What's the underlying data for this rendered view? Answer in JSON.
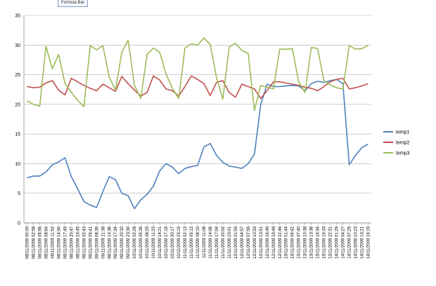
{
  "tooltip": {
    "label": "Formula Bar"
  },
  "chart_data": {
    "type": "line",
    "title": "",
    "xlabel": "",
    "ylabel": "",
    "ylim": [
      0,
      35
    ],
    "yticks": [
      0,
      5,
      10,
      15,
      20,
      25,
      30,
      35
    ],
    "grid": true,
    "legend": "right",
    "categories": [
      "08/11/2009 00:00",
      "08/11/2009 02:58",
      "08/11/2009 05:56",
      "08/11/2009 08:54",
      "08/11/2009 11:52",
      "08/11/2009 14:50",
      "08/11/2009 17:49",
      "08/11/2009 20:47",
      "08/11/2009 23:45",
      "09/11/2009 02:43",
      "09/11/2009 05:41",
      "09/11/2009 08:39",
      "09/11/2009 11:38",
      "09/11/2009 14:36",
      "09/11/2009 17:34",
      "09/11/2009 20:32",
      "09/11/2009 23:30",
      "10/11/2009 02:28",
      "10/11/2009 05:26",
      "10/11/2009 08:25",
      "10/11/2009 11:23",
      "10/11/2009 14:21",
      "10/11/2009 17:19",
      "10/11/2009 20:17",
      "10/11/2009 23:15",
      "11/11/2009 02:13",
      "11/11/2009 05:12",
      "11/11/2009 08:10",
      "11/11/2009 11:08",
      "11/11/2009 14:06",
      "11/11/2009 17:04",
      "11/11/2009 20:02",
      "11/11/2009 23:01",
      "12/11/2009 01:59",
      "12/11/2009 04:57",
      "12/11/2009 07:55",
      "12/11/2009 10:53",
      "12/11/2009 13:51",
      "12/11/2009 16:49",
      "12/11/2009 19:48",
      "12/11/2009 22:46",
      "13/11/2009 01:44",
      "13/11/2009 04:42",
      "13/11/2009 07:40",
      "13/11/2009 10:38",
      "13/11/2009 13:36",
      "13/11/2009 16:34",
      "13/11/2009 19:33",
      "13/11/2009 22:31",
      "14/11/2009 01:29",
      "14/11/2009 04:27",
      "14/11/2009 07:25",
      "14/11/2009 10:23",
      "14/11/2009 13:21",
      "14/11/2009 16:19"
    ],
    "xticklabels": [
      "08/11/2009 00:00",
      "08/11/2009 02:58",
      "08/11/2009 05:56",
      "08/11/2009 08:54",
      "08/11/2009 11:52",
      "08/11/2009 14:50",
      "08/11/2009 17:49",
      "08/11/2009 20:47",
      "08/11/2009 23:45",
      "09/11/2009 02:43",
      "09/11/2009 05:41",
      "09/11/2009 08:39",
      "09/11/2009 11:38",
      "09/11/2009 14:36",
      "09/11/2009 17:34",
      "09/11/2009 20:32",
      "09/11/2009 23:30",
      "10/11/2009 02:28",
      "10/11/2009 05:26",
      "10/11/2009 08:25",
      "10/11/2009 11:23",
      "10/11/2009 14:21",
      "10/11/2009 17:19",
      "10/11/2009 20:17",
      "10/11/2009 23:15",
      "11/11/2009 02:13",
      "11/11/2009 05:12",
      "11/11/2009 08:10",
      "11/11/2009 11:08",
      "11/11/2009 14:06",
      "11/11/2009 17:04",
      "11/11/2009 20:02",
      "11/11/2009 23:01",
      "12/11/2009 01:59",
      "12/11/2009 04:57",
      "12/11/2009 07:55",
      "12/11/2009 10:53",
      "12/11/2009 13:51",
      "12/11/2009 16:49",
      "12/11/2009 19:48",
      "12/11/2009 22:46",
      "13/11/2009 01:44",
      "13/11/2009 04:42",
      "13/11/2009 07:40",
      "13/11/2009 10:38",
      "13/11/2009 13:36",
      "13/11/2009 16:34",
      "13/11/2009 19:33",
      "13/11/2009 22:31",
      "14/11/2009 01:29",
      "14/11/2009 04:27",
      "14/11/2009 07:25",
      "14/11/2009 10:23",
      "14/11/2009 13:21",
      "14/11/2009 16:19"
    ],
    "series": [
      {
        "name": "temp1",
        "color": "#4f81bd",
        "values": [
          7.6,
          7.9,
          7.9,
          8.6,
          9.8,
          10.3,
          11.0,
          7.8,
          5.8,
          3.6,
          3.0,
          2.6,
          5.3,
          7.8,
          7.3,
          5.0,
          4.6,
          2.4,
          3.9,
          4.8,
          6.2,
          8.8,
          10.0,
          9.4,
          8.3,
          9.2,
          9.5,
          9.7,
          12.8,
          13.4,
          11.4,
          10.2,
          9.6,
          9.4,
          9.2,
          10.0,
          11.6,
          20.0,
          23.4,
          23.0,
          23.0,
          23.1,
          23.2,
          23.1,
          22.3,
          23.5,
          23.9,
          23.7,
          24.0,
          24.2,
          23.5,
          9.8,
          11.4,
          12.7,
          13.3
        ]
      },
      {
        "name": "temp2",
        "color": "#c0504d",
        "values": [
          23.0,
          22.8,
          22.9,
          23.6,
          24.0,
          22.4,
          21.6,
          24.4,
          23.8,
          23.2,
          22.7,
          22.3,
          23.4,
          22.8,
          22.2,
          24.7,
          23.5,
          22.4,
          21.4,
          22.0,
          24.8,
          24.1,
          22.6,
          22.3,
          21.4,
          23.0,
          24.8,
          24.2,
          23.5,
          21.5,
          23.7,
          24.0,
          22.0,
          21.2,
          23.4,
          23.0,
          22.6,
          21.0,
          22.3,
          23.8,
          23.8,
          23.6,
          23.4,
          23.2,
          22.9,
          22.7,
          22.3,
          23.0,
          23.8,
          24.2,
          24.4,
          22.6,
          22.8,
          23.1,
          23.5
        ]
      },
      {
        "name": "temp3",
        "color": "#9bbb59",
        "values": [
          20.6,
          20.0,
          19.7,
          29.8,
          26.0,
          28.4,
          23.5,
          22.0,
          20.7,
          19.6,
          29.9,
          29.2,
          29.9,
          24.6,
          22.4,
          28.8,
          30.8,
          23.2,
          21.0,
          28.4,
          29.5,
          28.8,
          25.1,
          22.7,
          21.0,
          29.5,
          30.2,
          30.0,
          31.2,
          30.1,
          24.5,
          20.9,
          29.7,
          30.3,
          29.1,
          28.6,
          19.0,
          23.2,
          22.9,
          22.6,
          29.3,
          29.3,
          29.4,
          23.8,
          22.0,
          29.6,
          29.4,
          24.0,
          23.3,
          22.8,
          22.6,
          29.9,
          29.3,
          29.4,
          30.0
        ]
      }
    ]
  }
}
